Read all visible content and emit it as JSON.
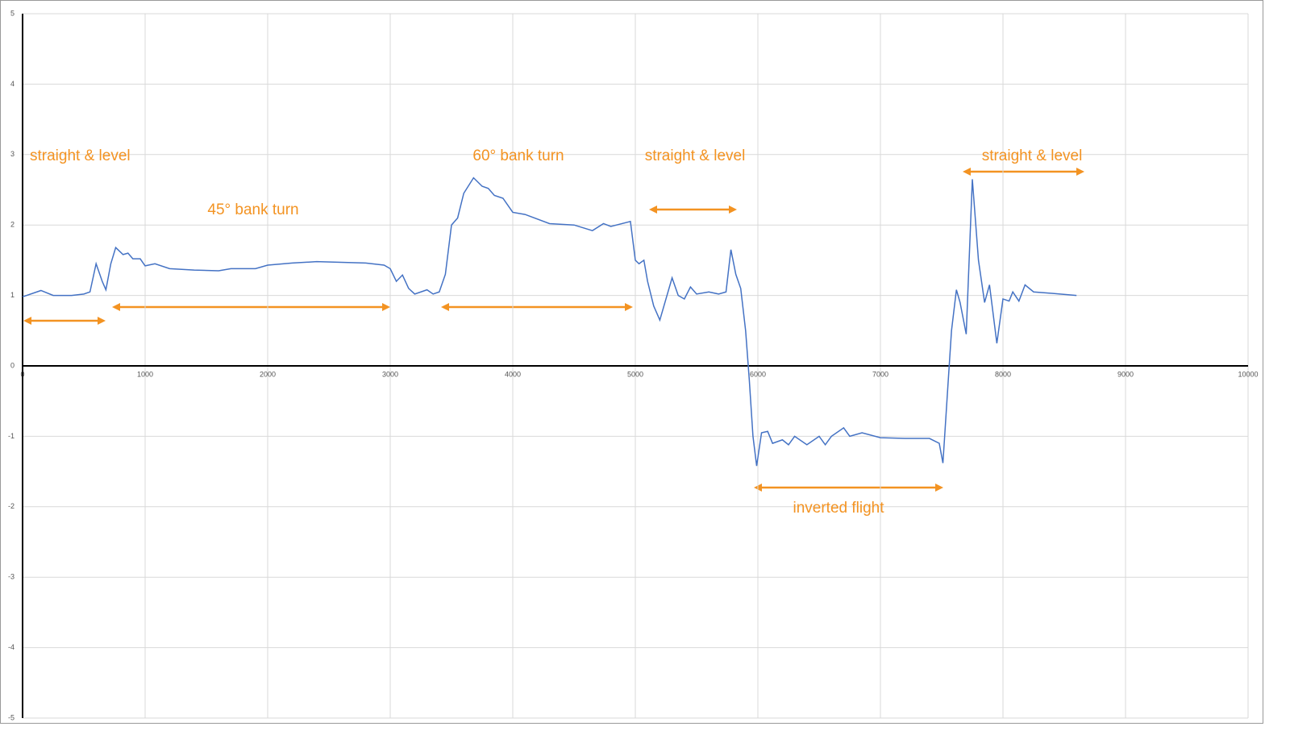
{
  "chart_data": {
    "type": "line",
    "x": [
      0,
      150,
      250,
      400,
      500,
      550,
      600,
      650,
      680,
      720,
      760,
      820,
      860,
      900,
      960,
      1000,
      1080,
      1200,
      1400,
      1600,
      1700,
      1900,
      2000,
      2200,
      2400,
      2600,
      2800,
      2950,
      3000,
      3050,
      3100,
      3150,
      3200,
      3300,
      3350,
      3400,
      3450,
      3500,
      3550,
      3600,
      3680,
      3750,
      3800,
      3850,
      3920,
      4000,
      4100,
      4300,
      4500,
      4650,
      4740,
      4800,
      4960,
      5000,
      5030,
      5070,
      5100,
      5150,
      5200,
      5250,
      5300,
      5350,
      5400,
      5450,
      5500,
      5600,
      5680,
      5740,
      5780,
      5820,
      5860,
      5900,
      5930,
      5960,
      5990,
      6030,
      6080,
      6120,
      6200,
      6250,
      6300,
      6400,
      6500,
      6550,
      6600,
      6700,
      6750,
      6850,
      7000,
      7200,
      7400,
      7480,
      7510,
      7550,
      7580,
      7620,
      7650,
      7700,
      7750,
      7800,
      7850,
      7890,
      7950,
      8000,
      8050,
      8080,
      8130,
      8180,
      8250,
      8400,
      8600
    ],
    "series": [
      {
        "color": "#4472c4",
        "values": [
          0.98,
          1.07,
          1.0,
          1.0,
          1.02,
          1.05,
          1.45,
          1.2,
          1.08,
          1.45,
          1.68,
          1.58,
          1.6,
          1.52,
          1.52,
          1.42,
          1.45,
          1.38,
          1.36,
          1.35,
          1.38,
          1.38,
          1.43,
          1.46,
          1.48,
          1.47,
          1.46,
          1.43,
          1.38,
          1.2,
          1.29,
          1.1,
          1.02,
          1.08,
          1.02,
          1.05,
          1.3,
          2.0,
          2.1,
          2.45,
          2.67,
          2.55,
          2.52,
          2.42,
          2.38,
          2.18,
          2.15,
          2.02,
          2.0,
          1.92,
          2.02,
          1.98,
          2.05,
          1.5,
          1.45,
          1.5,
          1.2,
          0.85,
          0.65,
          0.95,
          1.25,
          1.0,
          0.95,
          1.12,
          1.02,
          1.05,
          1.02,
          1.05,
          1.65,
          1.3,
          1.1,
          0.5,
          -0.2,
          -1.0,
          -1.42,
          -0.95,
          -0.93,
          -1.1,
          -1.05,
          -1.12,
          -1.0,
          -1.12,
          -1.0,
          -1.12,
          -1.0,
          -0.88,
          -1.0,
          -0.95,
          -1.02,
          -1.03,
          -1.03,
          -1.1,
          -1.38,
          -0.3,
          0.5,
          1.08,
          0.9,
          0.45,
          2.65,
          1.5,
          0.9,
          1.15,
          0.32,
          0.95,
          0.92,
          1.05,
          0.92,
          1.15,
          1.05,
          1.03,
          1.0
        ]
      }
    ],
    "xlim": [
      0,
      10000
    ],
    "xticks": [
      0,
      1000,
      2000,
      3000,
      4000,
      5000,
      6000,
      7000,
      8000,
      9000,
      10000
    ],
    "ylim": [
      -5,
      5
    ],
    "yticks": [
      -5,
      -4,
      -3,
      -2,
      -1,
      0,
      1,
      2,
      3,
      4,
      5
    ],
    "grid": true,
    "annotations": [
      "straight & level",
      "45° bank turn",
      "60° bank turn",
      "straight & level",
      "straight & level",
      "inverted flight"
    ]
  }
}
